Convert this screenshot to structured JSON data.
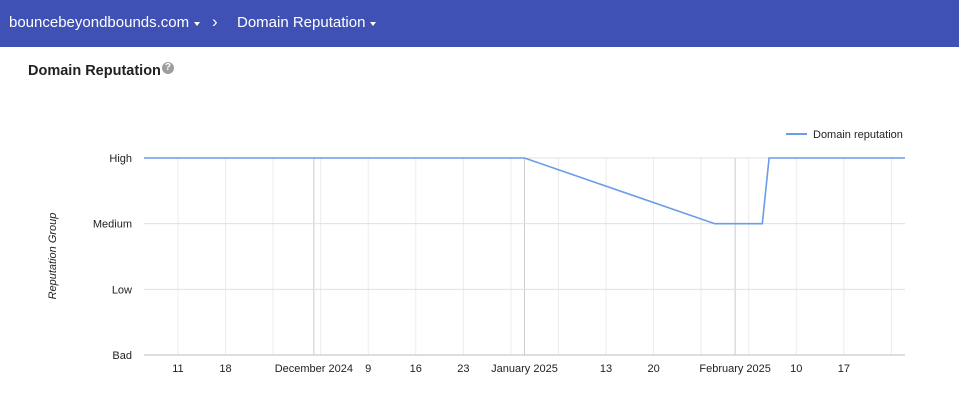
{
  "header": {
    "domain_label": "bouncebeyondbounds.com",
    "separator": "›",
    "page_label": "Domain Reputation",
    "bg_color": "#3f51b5"
  },
  "card": {
    "title": "Domain Reputation",
    "help_icon": "?"
  },
  "chart_data": {
    "type": "line",
    "title": "",
    "ylabel": "Reputation Group",
    "xlabel": "",
    "y_categories": [
      "Bad",
      "Low",
      "Medium",
      "High"
    ],
    "x_tick_labels": [
      "11",
      "18",
      "December 2024",
      "9",
      "16",
      "23",
      "January 2025",
      "13",
      "20",
      "February 2025",
      "10",
      "17"
    ],
    "x_tick_dates": [
      "2024-11-11",
      "2024-11-18",
      "2024-12-01",
      "2024-12-09",
      "2024-12-16",
      "2024-12-23",
      "2025-01-01",
      "2025-01-13",
      "2025-01-20",
      "2025-02-01",
      "2025-02-10",
      "2025-02-17"
    ],
    "x_range": [
      "2024-11-06",
      "2025-02-26"
    ],
    "legend": {
      "position": "top-right",
      "entries": [
        "Domain reputation"
      ]
    },
    "series": [
      {
        "name": "Domain reputation",
        "color": "#6a9ce8",
        "points": [
          {
            "x": "2024-11-06",
            "y": "High"
          },
          {
            "x": "2025-01-01",
            "y": "High"
          },
          {
            "x": "2025-01-29",
            "y": "Medium"
          },
          {
            "x": "2025-02-05",
            "y": "Medium"
          },
          {
            "x": "2025-02-06",
            "y": "High"
          },
          {
            "x": "2025-02-26",
            "y": "High"
          }
        ]
      }
    ],
    "grid": true
  }
}
